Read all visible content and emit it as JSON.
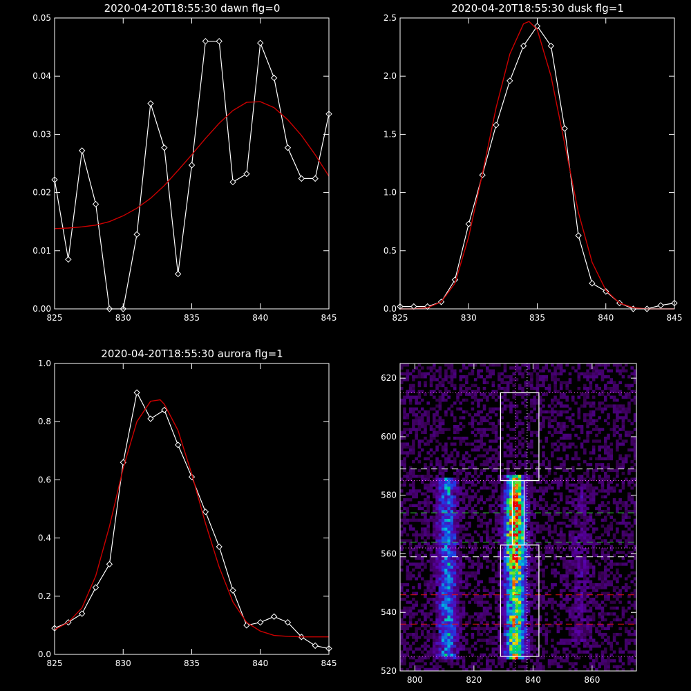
{
  "chart_data": [
    {
      "type": "line",
      "title": "2020-04-20T18:55:30 dawn flg=0",
      "xlim": [
        825,
        845
      ],
      "ylim": [
        0,
        0.05
      ],
      "xticks": [
        "825",
        "830",
        "835",
        "840",
        "845"
      ],
      "yticks": [
        "0.00",
        "0.01",
        "0.02",
        "0.03",
        "0.04",
        "0.05"
      ],
      "series": [
        {
          "color": "#ffffff",
          "marker": "diamond",
          "x": [
            825,
            826,
            827,
            828,
            829,
            830,
            831,
            832,
            833,
            834,
            835,
            836,
            837,
            838,
            839,
            840,
            841,
            842,
            843,
            844,
            845
          ],
          "y": [
            0.0222,
            0.0085,
            0.0272,
            0.018,
            0.0,
            0.0,
            0.0128,
            0.0353,
            0.0277,
            0.006,
            0.0247,
            0.046,
            0.046,
            0.0218,
            0.0232,
            0.0457,
            0.0397,
            0.0277,
            0.0224,
            0.0224,
            0.0335
          ]
        },
        {
          "color": "#cc0000",
          "marker": "none",
          "x": [
            825,
            826,
            827,
            828,
            829,
            830,
            831,
            832,
            833,
            834,
            835,
            836,
            837,
            838,
            839,
            840,
            841,
            842,
            843,
            844,
            845
          ],
          "y": [
            0.0138,
            0.0139,
            0.0141,
            0.0144,
            0.015,
            0.016,
            0.0173,
            0.019,
            0.0212,
            0.0238,
            0.0265,
            0.0293,
            0.0319,
            0.0341,
            0.0355,
            0.0356,
            0.0346,
            0.0325,
            0.0298,
            0.0265,
            0.0228
          ]
        }
      ]
    },
    {
      "type": "line",
      "title": "2020-04-20T18:55:30 dusk flg=1",
      "xlim": [
        825,
        845
      ],
      "ylim": [
        0,
        2.5
      ],
      "xticks": [
        "825",
        "830",
        "835",
        "840",
        "845"
      ],
      "yticks": [
        "0.0",
        "0.5",
        "1.0",
        "1.5",
        "2.0",
        "2.5"
      ],
      "series": [
        {
          "color": "#ffffff",
          "marker": "diamond",
          "x": [
            825,
            826,
            827,
            828,
            829,
            830,
            831,
            832,
            833,
            834,
            835,
            836,
            837,
            838,
            839,
            840,
            841,
            842,
            843,
            844,
            845
          ],
          "y": [
            0.02,
            0.02,
            0.02,
            0.06,
            0.25,
            0.73,
            1.15,
            1.58,
            1.96,
            2.26,
            2.43,
            2.26,
            1.55,
            0.63,
            0.22,
            0.15,
            0.05,
            0.0,
            0.0,
            0.03,
            0.05
          ]
        },
        {
          "color": "#cc0000",
          "marker": "none",
          "x": [
            825,
            826,
            827,
            828,
            829,
            830,
            831,
            832,
            833,
            834,
            834.4,
            835,
            836,
            837,
            838,
            839,
            840,
            841,
            842,
            843,
            844,
            845
          ],
          "y": [
            0.0,
            0.0,
            0.01,
            0.06,
            0.22,
            0.62,
            1.16,
            1.73,
            2.19,
            2.45,
            2.47,
            2.4,
            2.0,
            1.42,
            0.83,
            0.4,
            0.16,
            0.05,
            0.01,
            0.0,
            0.0,
            0.0
          ]
        }
      ]
    },
    {
      "type": "line",
      "title": "2020-04-20T18:55:30 aurora flg=1",
      "xlim": [
        825,
        845
      ],
      "ylim": [
        0,
        1.0
      ],
      "xticks": [
        "825",
        "830",
        "835",
        "840",
        "845"
      ],
      "yticks": [
        "0.0",
        "0.2",
        "0.4",
        "0.6",
        "0.8",
        "1.0"
      ],
      "series": [
        {
          "color": "#ffffff",
          "marker": "diamond",
          "x": [
            825,
            826,
            827,
            828,
            829,
            830,
            831,
            832,
            833,
            834,
            835,
            836,
            837,
            838,
            839,
            840,
            841,
            842,
            843,
            844,
            845
          ],
          "y": [
            0.09,
            0.11,
            0.14,
            0.23,
            0.31,
            0.66,
            0.9,
            0.81,
            0.84,
            0.72,
            0.61,
            0.49,
            0.37,
            0.22,
            0.1,
            0.11,
            0.13,
            0.11,
            0.06,
            0.03,
            0.02
          ]
        },
        {
          "color": "#cc0000",
          "marker": "none",
          "x": [
            825,
            826,
            827,
            828,
            829,
            830,
            831,
            832,
            832.7,
            833,
            834,
            835,
            836,
            837,
            838,
            839,
            840,
            841,
            842,
            843,
            844,
            845
          ],
          "y": [
            0.085,
            0.11,
            0.16,
            0.27,
            0.44,
            0.64,
            0.8,
            0.87,
            0.875,
            0.86,
            0.77,
            0.62,
            0.45,
            0.3,
            0.18,
            0.11,
            0.08,
            0.065,
            0.062,
            0.06,
            0.06,
            0.06
          ]
        }
      ]
    },
    {
      "type": "heatmap",
      "title": "",
      "xlim": [
        795,
        875
      ],
      "ylim": [
        520,
        625
      ],
      "xticks": [
        "800",
        "820",
        "840",
        "860"
      ],
      "yticks": [
        "520",
        "540",
        "560",
        "580",
        "600",
        "620"
      ],
      "bands": [
        {
          "center": 811,
          "width": 4,
          "ymin": 524,
          "ymax": 586,
          "strength": 0.45
        },
        {
          "center": 834,
          "width": 4,
          "ymin": 524,
          "ymax": 587,
          "strength": 0.8
        },
        {
          "center": 856,
          "width": 4,
          "ymin": 530,
          "ymax": 584,
          "strength": 0.12
        }
      ],
      "boxes": [
        {
          "x": [
            829,
            842
          ],
          "y": [
            585,
            615
          ]
        },
        {
          "x": [
            829,
            842
          ],
          "y": [
            525,
            563
          ]
        }
      ],
      "box_link_x": [
        833,
        837
      ],
      "vlines": [
        {
          "x": 834,
          "color": "#ff66ff",
          "style": "dotted"
        },
        {
          "x": 838,
          "color": "#ffffff",
          "style": "dotted"
        }
      ],
      "hlines": [
        {
          "y": 615,
          "color": "#ff66ff",
          "style": "dotted"
        },
        {
          "y": 589,
          "color": "#ffffff",
          "style": "dashed"
        },
        {
          "y": 585,
          "color": "#ff66ff",
          "style": "dotted"
        },
        {
          "y": 574,
          "color": "#33cc33",
          "style": "dashed"
        },
        {
          "y": 564,
          "color": "#33cc33",
          "style": "dashed"
        },
        {
          "y": 562,
          "color": "#ff66ff",
          "style": "dotted"
        },
        {
          "y": 559,
          "color": "#ffffff",
          "style": "dashed"
        },
        {
          "y": 546,
          "color": "#dd1111",
          "style": "dashed"
        },
        {
          "y": 536,
          "color": "#dd1111",
          "style": "dashed"
        },
        {
          "y": 525,
          "color": "#ff66ff",
          "style": "dotted"
        }
      ]
    }
  ]
}
